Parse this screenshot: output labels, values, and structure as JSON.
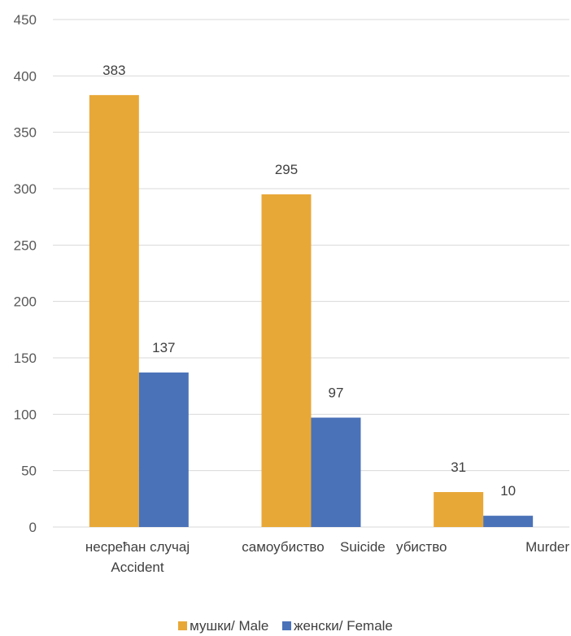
{
  "chart_data": {
    "type": "bar",
    "categories": [
      [
        "несрећан случај",
        "Accident"
      ],
      [
        "самоубиство",
        "Suicide"
      ],
      [
        "убиство",
        "Murder"
      ]
    ],
    "series": [
      {
        "name": "мушки/ Male",
        "color": "#E8A838",
        "values": [
          383,
          295,
          31
        ]
      },
      {
        "name": "женски/ Female",
        "color": "#4A72B8",
        "values": [
          137,
          97,
          10
        ]
      }
    ],
    "ylim": [
      0,
      450
    ],
    "yticks": [
      0,
      50,
      100,
      150,
      200,
      250,
      300,
      350,
      400,
      450
    ],
    "grid": true,
    "legend_position": "bottom"
  }
}
